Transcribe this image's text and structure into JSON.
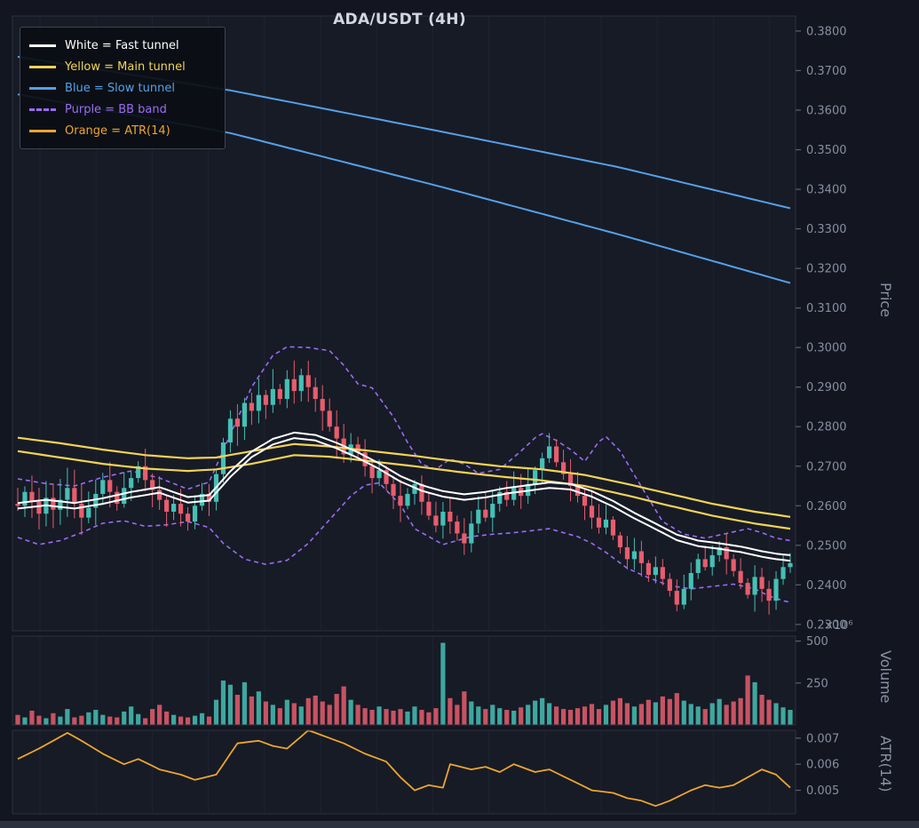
{
  "title": "ADA/USDT (4H)",
  "legend": {
    "items": [
      {
        "label": "White = Fast tunnel",
        "color": "#ffffff",
        "dash": false
      },
      {
        "label": "Yellow = Main tunnel",
        "color": "#f2d355",
        "dash": false
      },
      {
        "label": "Blue = Slow tunnel",
        "color": "#55a0e8",
        "dash": false
      },
      {
        "label": "Purple = BB band",
        "color": "#9a6cf5",
        "dash": true
      },
      {
        "label": "Orange = ATR(14)",
        "color": "#eda52f",
        "dash": false
      }
    ]
  },
  "axes": {
    "price": {
      "label": "Price",
      "ticks": [
        "0.3800",
        "0.3700",
        "0.3600",
        "0.3500",
        "0.3400",
        "0.3300",
        "0.3200",
        "0.3100",
        "0.3000",
        "0.2900",
        "0.2800",
        "0.2700",
        "0.2600",
        "0.2500",
        "0.2400",
        "0.2300"
      ]
    },
    "volume": {
      "label": "Volume",
      "ticks": [
        "500",
        "250"
      ],
      "offset": "×10⁶"
    },
    "atr": {
      "label": "ATR(14)",
      "ticks": [
        "0.007",
        "0.006",
        "0.005"
      ]
    }
  },
  "colors": {
    "fig_bg": "#131621",
    "axes_bg": "#171b26",
    "grid": "#232a3a",
    "spine": "#2b303d",
    "tick_text": "#878e9f",
    "title_text": "#d3d7e0",
    "bottom_strip": "#2d3240",
    "up": "#45c0b5",
    "down": "#e85d6d",
    "white": "#ffffff",
    "yellow": "#f2d355",
    "blue": "#55a0e8",
    "purple": "#9a6cf5",
    "orange": "#eda52f"
  },
  "chart_data": {
    "type": "candlestick",
    "title": "ADA/USDT (4H)",
    "symbol": "ADA/USDT",
    "timeframe": "4H",
    "price_ylim": [
      0.2284,
      0.3838
    ],
    "volume_ylim": [
      0,
      530
    ],
    "atr_ylim": [
      0.0041,
      0.0073
    ],
    "closes": [
      0.26,
      0.2635,
      0.261,
      0.258,
      0.262,
      0.259,
      0.2615,
      0.2645,
      0.2605,
      0.257,
      0.2595,
      0.263,
      0.2665,
      0.2635,
      0.2605,
      0.2645,
      0.267,
      0.27,
      0.2665,
      0.264,
      0.2615,
      0.2585,
      0.2605,
      0.258,
      0.256,
      0.26,
      0.263,
      0.261,
      0.268,
      0.276,
      0.282,
      0.28,
      0.286,
      0.284,
      0.288,
      0.2855,
      0.2895,
      0.287,
      0.292,
      0.289,
      0.293,
      0.29,
      0.287,
      0.284,
      0.28,
      0.277,
      0.273,
      0.2755,
      0.2735,
      0.27,
      0.267,
      0.269,
      0.2655,
      0.2625,
      0.26,
      0.263,
      0.2655,
      0.261,
      0.2575,
      0.255,
      0.2585,
      0.256,
      0.253,
      0.2505,
      0.2555,
      0.259,
      0.257,
      0.2605,
      0.2635,
      0.2615,
      0.2645,
      0.2625,
      0.2655,
      0.269,
      0.272,
      0.275,
      0.271,
      0.268,
      0.265,
      0.2625,
      0.26,
      0.257,
      0.2545,
      0.2565,
      0.2525,
      0.2495,
      0.2465,
      0.2485,
      0.2455,
      0.2425,
      0.2445,
      0.2415,
      0.2385,
      0.235,
      0.239,
      0.243,
      0.2465,
      0.2445,
      0.2475,
      0.2495,
      0.2465,
      0.2435,
      0.2405,
      0.2375,
      0.242,
      0.239,
      0.236,
      0.2415,
      0.2445,
      0.2455
    ],
    "volumes_millions": [
      60,
      45,
      85,
      55,
      40,
      70,
      50,
      95,
      45,
      55,
      75,
      90,
      60,
      50,
      45,
      80,
      110,
      65,
      40,
      95,
      120,
      80,
      60,
      50,
      45,
      55,
      70,
      50,
      150,
      265,
      240,
      180,
      255,
      170,
      200,
      140,
      120,
      100,
      150,
      130,
      110,
      160,
      175,
      140,
      120,
      185,
      230,
      150,
      120,
      100,
      90,
      110,
      95,
      85,
      95,
      80,
      110,
      90,
      75,
      100,
      490,
      160,
      120,
      200,
      140,
      110,
      95,
      120,
      100,
      90,
      85,
      105,
      120,
      145,
      160,
      130,
      110,
      95,
      90,
      100,
      110,
      125,
      95,
      120,
      145,
      160,
      130,
      110,
      125,
      150,
      135,
      170,
      155,
      190,
      145,
      125,
      110,
      95,
      130,
      155,
      120,
      140,
      160,
      295,
      255,
      180,
      150,
      130,
      105,
      90
    ],
    "overlays": {
      "fast_tunnel_halfwidth": 0.0007,
      "fast_tunnel_mid": [
        [
          0,
          0.26
        ],
        [
          4,
          0.2608
        ],
        [
          8,
          0.26
        ],
        [
          12,
          0.2612
        ],
        [
          16,
          0.2628
        ],
        [
          20,
          0.264
        ],
        [
          24,
          0.2615
        ],
        [
          27,
          0.262
        ],
        [
          30,
          0.268
        ],
        [
          33,
          0.273
        ],
        [
          36,
          0.2762
        ],
        [
          39,
          0.2778
        ],
        [
          42,
          0.2772
        ],
        [
          45,
          0.2752
        ],
        [
          48,
          0.2728
        ],
        [
          51,
          0.27
        ],
        [
          54,
          0.2668
        ],
        [
          57,
          0.2645
        ],
        [
          60,
          0.263
        ],
        [
          63,
          0.2622
        ],
        [
          66,
          0.2628
        ],
        [
          69,
          0.2638
        ],
        [
          72,
          0.2645
        ],
        [
          75,
          0.2652
        ],
        [
          78,
          0.2648
        ],
        [
          81,
          0.263
        ],
        [
          84,
          0.2605
        ],
        [
          87,
          0.2575
        ],
        [
          90,
          0.2548
        ],
        [
          93,
          0.252
        ],
        [
          96,
          0.2505
        ],
        [
          99,
          0.2498
        ],
        [
          102,
          0.249
        ],
        [
          105,
          0.2478
        ],
        [
          107,
          0.2472
        ],
        [
          109,
          0.2468
        ]
      ],
      "main_tunnel_upper": [
        [
          0,
          0.2772
        ],
        [
          6,
          0.2758
        ],
        [
          12,
          0.2742
        ],
        [
          18,
          0.2728
        ],
        [
          24,
          0.272
        ],
        [
          28,
          0.2722
        ],
        [
          33,
          0.2738
        ],
        [
          39,
          0.2756
        ],
        [
          44,
          0.275
        ],
        [
          50,
          0.2738
        ],
        [
          56,
          0.2726
        ],
        [
          62,
          0.2712
        ],
        [
          68,
          0.27
        ],
        [
          74,
          0.2692
        ],
        [
          80,
          0.2678
        ],
        [
          86,
          0.2655
        ],
        [
          92,
          0.263
        ],
        [
          98,
          0.2605
        ],
        [
          104,
          0.2585
        ],
        [
          109,
          0.2572
        ]
      ],
      "main_tunnel_lower": [
        [
          0,
          0.2738
        ],
        [
          6,
          0.2722
        ],
        [
          12,
          0.2706
        ],
        [
          18,
          0.2694
        ],
        [
          24,
          0.2688
        ],
        [
          28,
          0.2692
        ],
        [
          33,
          0.2706
        ],
        [
          39,
          0.2728
        ],
        [
          44,
          0.2724
        ],
        [
          50,
          0.2712
        ],
        [
          56,
          0.27
        ],
        [
          62,
          0.2686
        ],
        [
          68,
          0.2674
        ],
        [
          74,
          0.2664
        ],
        [
          80,
          0.265
        ],
        [
          86,
          0.2626
        ],
        [
          92,
          0.26
        ],
        [
          98,
          0.2575
        ],
        [
          104,
          0.2555
        ],
        [
          109,
          0.2542
        ]
      ],
      "slow_tunnel_upper": [
        [
          0,
          0.3735
        ],
        [
          30,
          0.365
        ],
        [
          60,
          0.3545
        ],
        [
          85,
          0.3455
        ],
        [
          109,
          0.3352
        ]
      ],
      "slow_tunnel_lower": [
        [
          0,
          0.364
        ],
        [
          30,
          0.3542
        ],
        [
          60,
          0.3405
        ],
        [
          85,
          0.3285
        ],
        [
          109,
          0.3163
        ]
      ],
      "bb_upper": [
        [
          0,
          0.2668
        ],
        [
          4,
          0.2656
        ],
        [
          8,
          0.265
        ],
        [
          12,
          0.2672
        ],
        [
          16,
          0.2688
        ],
        [
          20,
          0.267
        ],
        [
          24,
          0.2642
        ],
        [
          27,
          0.266
        ],
        [
          30,
          0.278
        ],
        [
          33,
          0.29
        ],
        [
          36,
          0.298
        ],
        [
          38,
          0.3002
        ],
        [
          41,
          0.3
        ],
        [
          44,
          0.2992
        ],
        [
          46,
          0.2955
        ],
        [
          48,
          0.2908
        ],
        [
          50,
          0.2898
        ],
        [
          53,
          0.2825
        ],
        [
          55,
          0.276
        ],
        [
          57,
          0.2705
        ],
        [
          59,
          0.2692
        ],
        [
          61,
          0.2718
        ],
        [
          63,
          0.2705
        ],
        [
          65,
          0.2682
        ],
        [
          68,
          0.2692
        ],
        [
          71,
          0.2738
        ],
        [
          73,
          0.2772
        ],
        [
          74,
          0.2782
        ],
        [
          76,
          0.2765
        ],
        [
          78,
          0.2742
        ],
        [
          80,
          0.2712
        ],
        [
          82,
          0.2762
        ],
        [
          83,
          0.2775
        ],
        [
          85,
          0.2738
        ],
        [
          88,
          0.2648
        ],
        [
          91,
          0.256
        ],
        [
          94,
          0.2528
        ],
        [
          97,
          0.2518
        ],
        [
          100,
          0.253
        ],
        [
          103,
          0.2542
        ],
        [
          105,
          0.2532
        ],
        [
          107,
          0.2518
        ],
        [
          109,
          0.2512
        ]
      ],
      "bb_lower": [
        [
          0,
          0.252
        ],
        [
          3,
          0.2502
        ],
        [
          6,
          0.2512
        ],
        [
          9,
          0.2532
        ],
        [
          12,
          0.2556
        ],
        [
          15,
          0.2562
        ],
        [
          18,
          0.2548
        ],
        [
          21,
          0.2552
        ],
        [
          24,
          0.256
        ],
        [
          27,
          0.2545
        ],
        [
          29,
          0.2505
        ],
        [
          32,
          0.2465
        ],
        [
          35,
          0.2452
        ],
        [
          38,
          0.2462
        ],
        [
          41,
          0.2505
        ],
        [
          44,
          0.2565
        ],
        [
          47,
          0.2625
        ],
        [
          49,
          0.2652
        ],
        [
          51,
          0.2658
        ],
        [
          54,
          0.2602
        ],
        [
          56,
          0.2542
        ],
        [
          58,
          0.2522
        ],
        [
          60,
          0.2502
        ],
        [
          62,
          0.2512
        ],
        [
          64,
          0.2522
        ],
        [
          67,
          0.2528
        ],
        [
          70,
          0.2532
        ],
        [
          73,
          0.2538
        ],
        [
          75,
          0.2542
        ],
        [
          77,
          0.2532
        ],
        [
          79,
          0.2522
        ],
        [
          81,
          0.2505
        ],
        [
          83,
          0.2482
        ],
        [
          86,
          0.2442
        ],
        [
          89,
          0.2418
        ],
        [
          92,
          0.2398
        ],
        [
          95,
          0.239
        ],
        [
          98,
          0.2396
        ],
        [
          101,
          0.2402
        ],
        [
          104,
          0.239
        ],
        [
          106,
          0.2372
        ],
        [
          108,
          0.236
        ],
        [
          109,
          0.2356
        ]
      ],
      "atr14": [
        [
          0,
          0.0062
        ],
        [
          3,
          0.0066
        ],
        [
          7,
          0.0072
        ],
        [
          9,
          0.0069
        ],
        [
          12,
          0.0064
        ],
        [
          15,
          0.006
        ],
        [
          17,
          0.0062
        ],
        [
          20,
          0.0058
        ],
        [
          23,
          0.0056
        ],
        [
          25,
          0.0054
        ],
        [
          28,
          0.0056
        ],
        [
          31,
          0.0068
        ],
        [
          34,
          0.0069
        ],
        [
          36,
          0.0067
        ],
        [
          38,
          0.0066
        ],
        [
          41,
          0.0073
        ],
        [
          43,
          0.0071
        ],
        [
          46,
          0.0068
        ],
        [
          49,
          0.0064
        ],
        [
          52,
          0.0061
        ],
        [
          54,
          0.0055
        ],
        [
          56,
          0.005
        ],
        [
          58,
          0.0052
        ],
        [
          60,
          0.0051
        ],
        [
          61,
          0.006
        ],
        [
          64,
          0.0058
        ],
        [
          66,
          0.0059
        ],
        [
          68,
          0.0057
        ],
        [
          70,
          0.006
        ],
        [
          73,
          0.0057
        ],
        [
          75,
          0.0058
        ],
        [
          78,
          0.0054
        ],
        [
          81,
          0.005
        ],
        [
          84,
          0.0049
        ],
        [
          86,
          0.0047
        ],
        [
          88,
          0.0046
        ],
        [
          90,
          0.0044
        ],
        [
          92,
          0.0046
        ],
        [
          95,
          0.005
        ],
        [
          97,
          0.0052
        ],
        [
          99,
          0.0051
        ],
        [
          101,
          0.0052
        ],
        [
          103,
          0.0055
        ],
        [
          105,
          0.0058
        ],
        [
          107,
          0.0056
        ],
        [
          109,
          0.0051
        ]
      ]
    }
  }
}
